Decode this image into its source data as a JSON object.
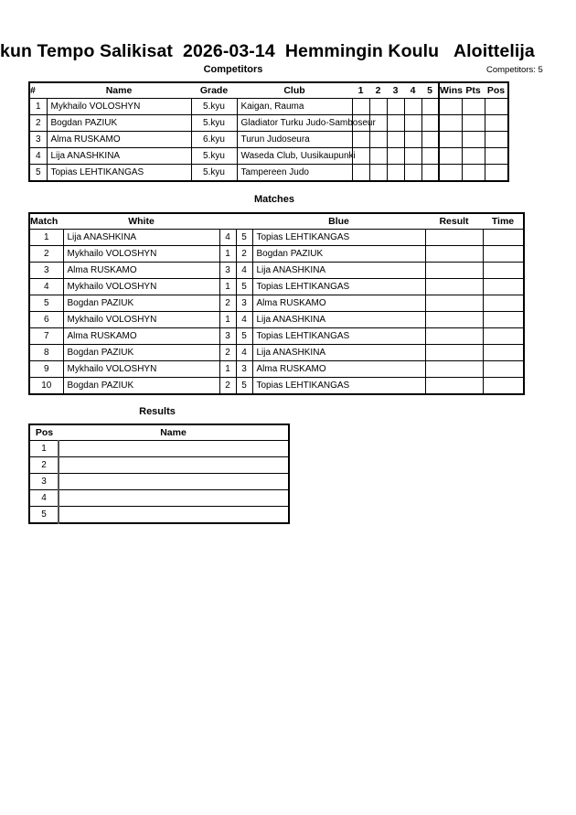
{
  "title": "kun Tempo Salikisat  2026-03-14  Hemmingin Koulu   Aloittelija",
  "competitors": {
    "heading": "Competitors",
    "count_label": "Competitors: 5",
    "columns": [
      "#",
      "Name",
      "Grade",
      "Club",
      "1",
      "2",
      "3",
      "4",
      "5",
      "Wins",
      "Pts",
      "Pos"
    ],
    "rows": [
      {
        "no": "1",
        "name": "Mykhailo VOLOSHYN",
        "grade": "5.kyu",
        "club": "Kaigan, Rauma"
      },
      {
        "no": "2",
        "name": "Bogdan PAZIUK",
        "grade": "5.kyu",
        "club": "Gladiator Turku Judo-Samboseur"
      },
      {
        "no": "3",
        "name": "Alma RUSKAMO",
        "grade": "6.kyu",
        "club": "Turun Judoseura"
      },
      {
        "no": "4",
        "name": "Lija ANASHKINA",
        "grade": "5.kyu",
        "club": "Waseda Club, Uusikaupunki"
      },
      {
        "no": "5",
        "name": "Topias LEHTIKANGAS",
        "grade": "5.kyu",
        "club": "Tampereen Judo"
      }
    ]
  },
  "matches": {
    "heading": "Matches",
    "columns": {
      "match": "Match",
      "white": "White",
      "blue": "Blue",
      "result": "Result",
      "time": "Time"
    },
    "rows": [
      {
        "match": "1",
        "white": "Lija ANASHKINA",
        "w": "4",
        "b": "5",
        "blue": "Topias LEHTIKANGAS"
      },
      {
        "match": "2",
        "white": "Mykhailo VOLOSHYN",
        "w": "1",
        "b": "2",
        "blue": "Bogdan PAZIUK"
      },
      {
        "match": "3",
        "white": "Alma RUSKAMO",
        "w": "3",
        "b": "4",
        "blue": "Lija ANASHKINA"
      },
      {
        "match": "4",
        "white": "Mykhailo VOLOSHYN",
        "w": "1",
        "b": "5",
        "blue": "Topias LEHTIKANGAS"
      },
      {
        "match": "5",
        "white": "Bogdan PAZIUK",
        "w": "2",
        "b": "3",
        "blue": "Alma RUSKAMO"
      },
      {
        "match": "6",
        "white": "Mykhailo VOLOSHYN",
        "w": "1",
        "b": "4",
        "blue": "Lija ANASHKINA"
      },
      {
        "match": "7",
        "white": "Alma RUSKAMO",
        "w": "3",
        "b": "5",
        "blue": "Topias LEHTIKANGAS"
      },
      {
        "match": "8",
        "white": "Bogdan PAZIUK",
        "w": "2",
        "b": "4",
        "blue": "Lija ANASHKINA"
      },
      {
        "match": "9",
        "white": "Mykhailo VOLOSHYN",
        "w": "1",
        "b": "3",
        "blue": "Alma RUSKAMO"
      },
      {
        "match": "10",
        "white": "Bogdan PAZIUK",
        "w": "2",
        "b": "5",
        "blue": "Topias LEHTIKANGAS"
      }
    ]
  },
  "results": {
    "heading": "Results",
    "columns": {
      "pos": "Pos",
      "name": "Name"
    },
    "rows": [
      "1",
      "2",
      "3",
      "4",
      "5"
    ]
  }
}
